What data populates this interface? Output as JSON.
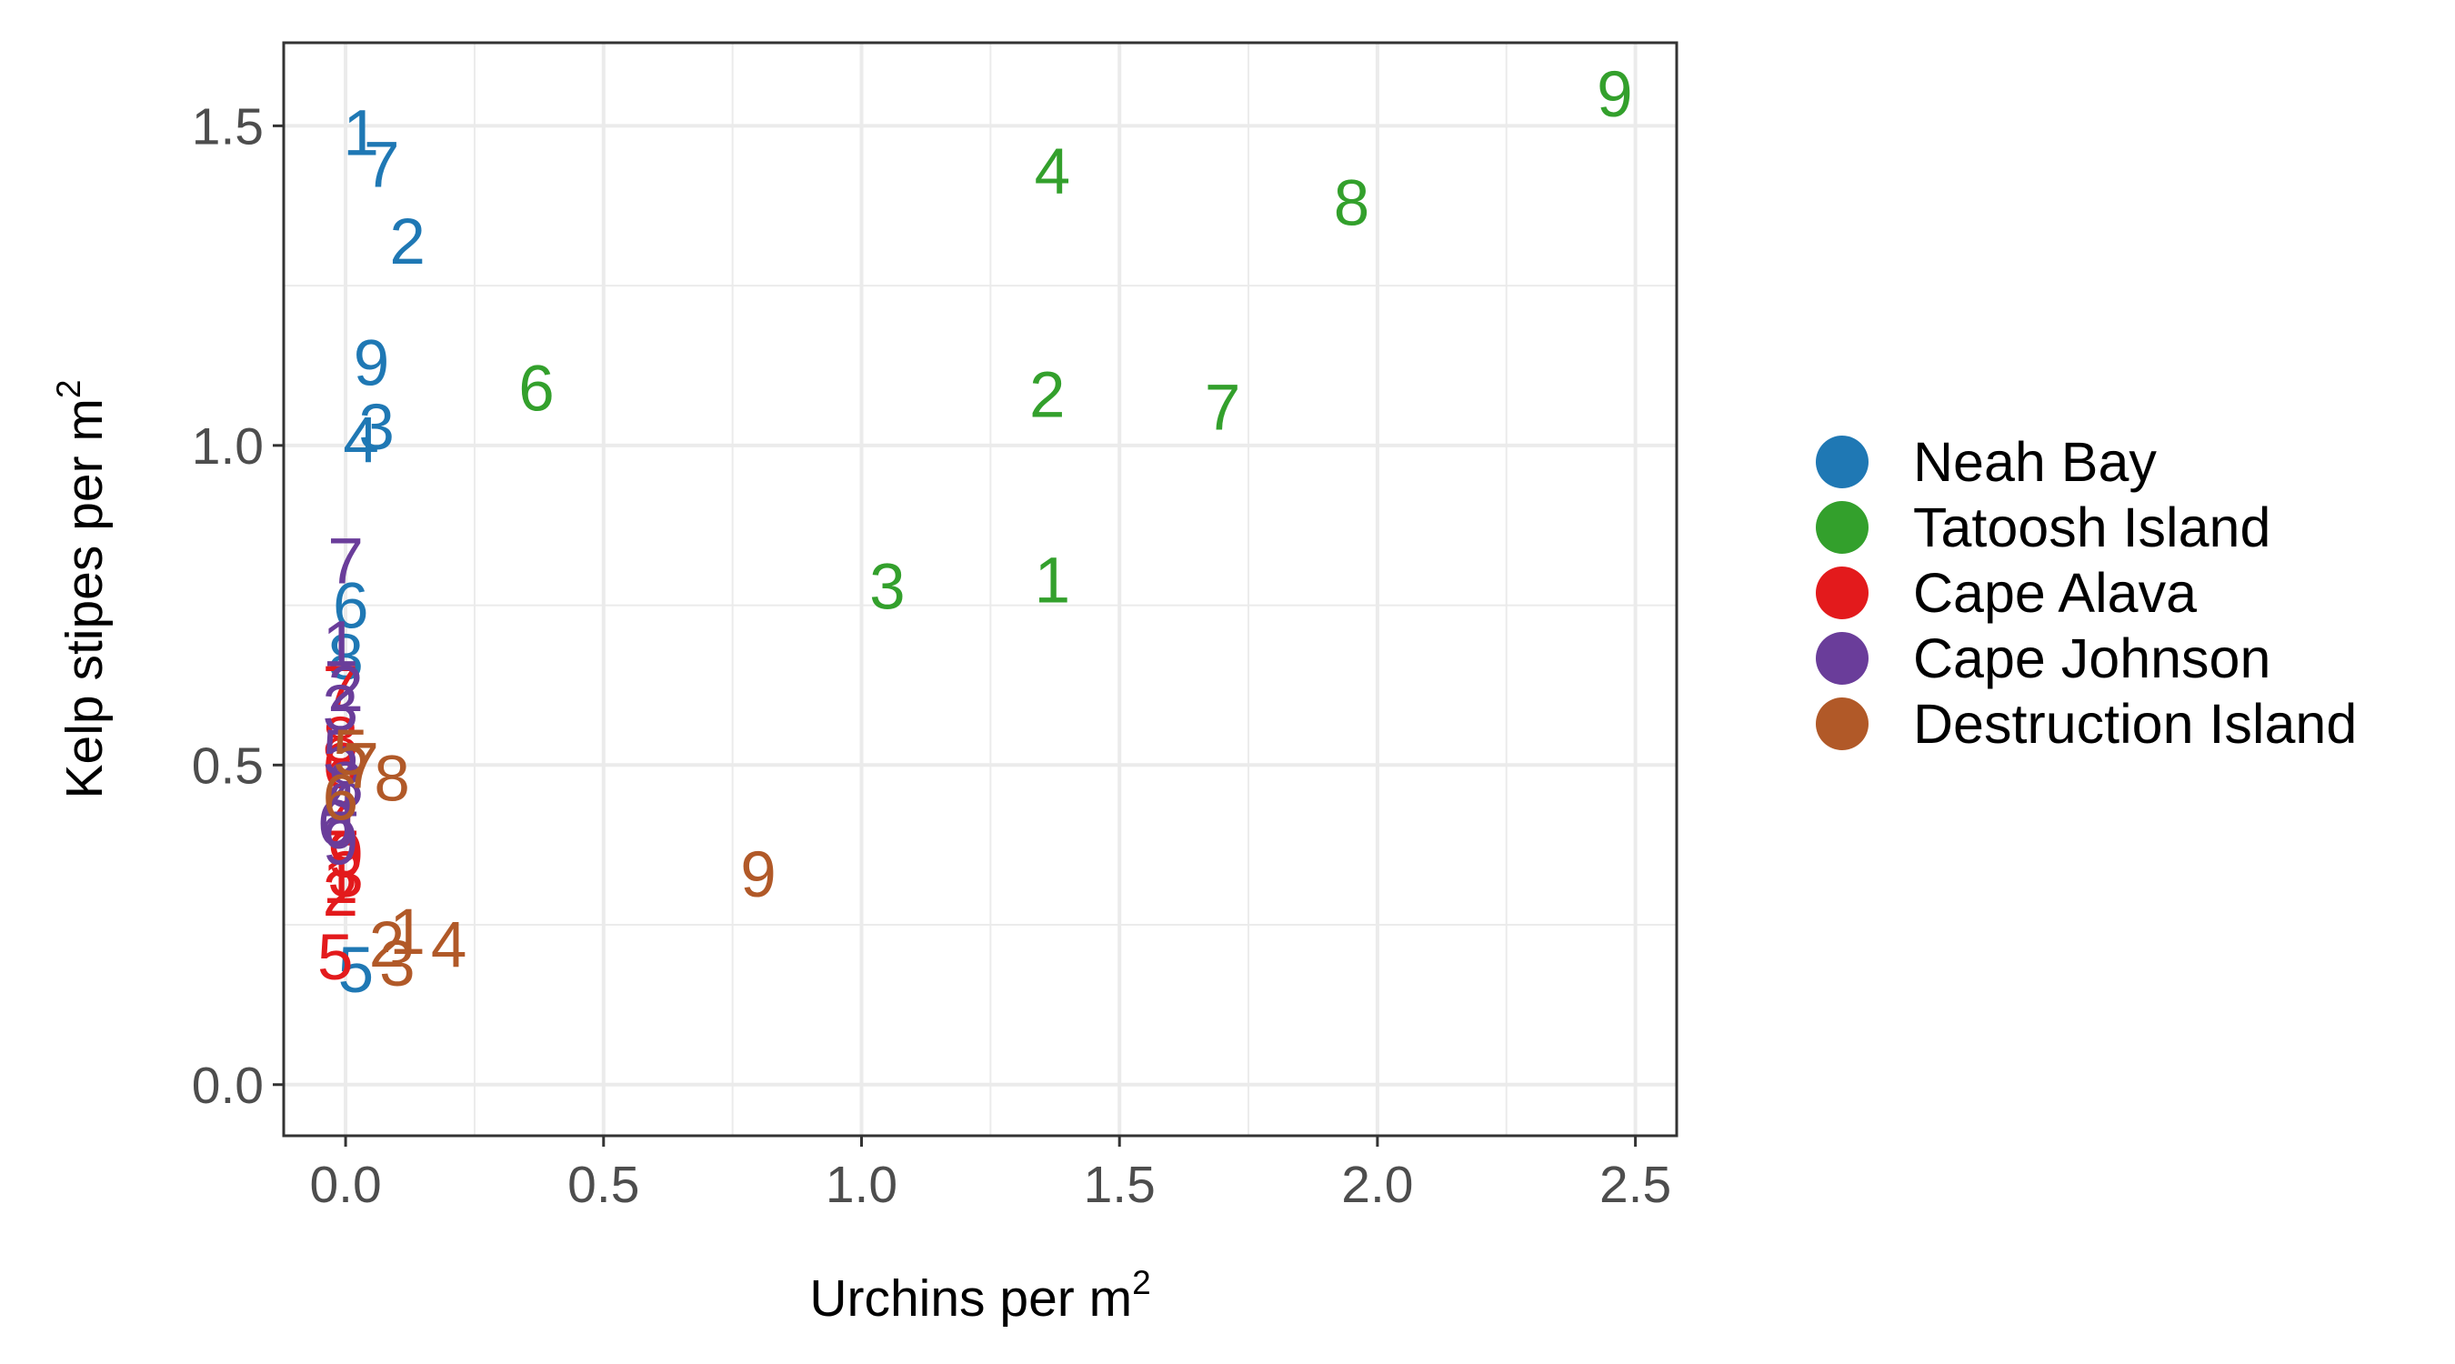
{
  "chart_data": {
    "type": "scatter",
    "point_style": "text-labels",
    "xlabel": "Urchins per m",
    "xlabel_superscript": "2",
    "ylabel": "Kelp stipes per m",
    "ylabel_superscript": "2",
    "xlim": [
      -0.12,
      2.58
    ],
    "ylim": [
      -0.08,
      1.63
    ],
    "x_ticks": [
      0.0,
      0.5,
      1.0,
      1.5,
      2.0,
      2.5
    ],
    "x_tick_labels": [
      "0.0",
      "0.5",
      "1.0",
      "1.5",
      "2.0",
      "2.5"
    ],
    "y_ticks": [
      0.0,
      0.5,
      1.0,
      1.5
    ],
    "y_tick_labels": [
      "0.0",
      "0.5",
      "1.0",
      "1.5"
    ],
    "grid": true,
    "legend_position": "right",
    "series": [
      {
        "name": "Neah Bay",
        "color": "#1f78b4",
        "points": [
          {
            "label": "1",
            "x": 0.03,
            "y": 1.49
          },
          {
            "label": "7",
            "x": 0.07,
            "y": 1.44
          },
          {
            "label": "2",
            "x": 0.12,
            "y": 1.32
          },
          {
            "label": "9",
            "x": 0.05,
            "y": 1.13
          },
          {
            "label": "3",
            "x": 0.06,
            "y": 1.03
          },
          {
            "label": "4",
            "x": 0.03,
            "y": 1.01
          },
          {
            "label": "6",
            "x": 0.01,
            "y": 0.75
          },
          {
            "label": "8",
            "x": 0.0,
            "y": 0.67
          },
          {
            "label": "5",
            "x": 0.02,
            "y": 0.18
          }
        ]
      },
      {
        "name": "Tatoosh Island",
        "color": "#33a02c",
        "points": [
          {
            "label": "9",
            "x": 2.46,
            "y": 1.55
          },
          {
            "label": "4",
            "x": 1.37,
            "y": 1.43
          },
          {
            "label": "8",
            "x": 1.95,
            "y": 1.38
          },
          {
            "label": "6",
            "x": 0.37,
            "y": 1.09
          },
          {
            "label": "2",
            "x": 1.36,
            "y": 1.08
          },
          {
            "label": "7",
            "x": 1.7,
            "y": 1.06
          },
          {
            "label": "3",
            "x": 1.05,
            "y": 0.78
          },
          {
            "label": "1",
            "x": 1.37,
            "y": 0.79
          }
        ]
      },
      {
        "name": "Cape Alava",
        "color": "#e31a1c",
        "points": [
          {
            "label": "7",
            "x": -0.01,
            "y": 0.62
          },
          {
            "label": "8",
            "x": -0.01,
            "y": 0.54
          },
          {
            "label": "6",
            "x": -0.01,
            "y": 0.5
          },
          {
            "label": "4",
            "x": -0.01,
            "y": 0.41
          },
          {
            "label": "9",
            "x": 0.0,
            "y": 0.36
          },
          {
            "label": "3",
            "x": 0.0,
            "y": 0.33
          },
          {
            "label": "1",
            "x": -0.01,
            "y": 0.32
          },
          {
            "label": "2",
            "x": -0.01,
            "y": 0.3
          },
          {
            "label": "5",
            "x": -0.02,
            "y": 0.2
          }
        ]
      },
      {
        "name": "Cape Johnson",
        "color": "#6a3d9a",
        "points": [
          {
            "label": "7",
            "x": 0.0,
            "y": 0.82
          },
          {
            "label": "1",
            "x": -0.01,
            "y": 0.69
          },
          {
            "label": "2",
            "x": 0.0,
            "y": 0.62
          },
          {
            "label": "3",
            "x": -0.01,
            "y": 0.59
          },
          {
            "label": "5",
            "x": -0.01,
            "y": 0.52
          },
          {
            "label": "8",
            "x": 0.0,
            "y": 0.47
          },
          {
            "label": "4",
            "x": -0.01,
            "y": 0.44
          },
          {
            "label": "6",
            "x": -0.02,
            "y": 0.41
          },
          {
            "label": "9",
            "x": -0.01,
            "y": 0.38
          }
        ]
      },
      {
        "name": "Destruction Island",
        "color": "#b15928",
        "points": [
          {
            "label": "5",
            "x": 0.01,
            "y": 0.52
          },
          {
            "label": "7",
            "x": 0.03,
            "y": 0.5
          },
          {
            "label": "8",
            "x": 0.09,
            "y": 0.48
          },
          {
            "label": "6",
            "x": -0.01,
            "y": 0.45
          },
          {
            "label": "9",
            "x": 0.8,
            "y": 0.33
          },
          {
            "label": "1",
            "x": 0.12,
            "y": 0.24
          },
          {
            "label": "2",
            "x": 0.08,
            "y": 0.22
          },
          {
            "label": "4",
            "x": 0.2,
            "y": 0.22
          },
          {
            "label": "3",
            "x": 0.1,
            "y": 0.19
          }
        ]
      }
    ]
  }
}
